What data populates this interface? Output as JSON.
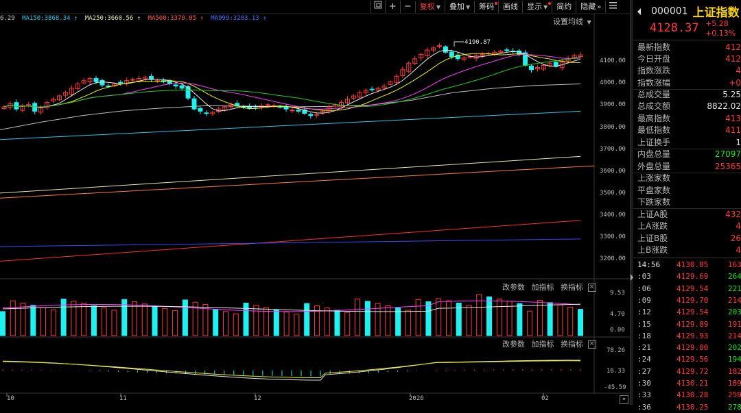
{
  "toolbar": {
    "icons": [
      "window-icon",
      "plus-icon",
      "minus-icon"
    ],
    "items": [
      {
        "label": "复权",
        "caret": true,
        "active": true,
        "dot": false
      },
      {
        "label": "叠加",
        "caret": true,
        "active": false,
        "dot": false
      },
      {
        "label": "筹码",
        "caret": false,
        "active": false,
        "dot": true
      },
      {
        "label": "画线",
        "caret": false,
        "active": false,
        "dot": false
      },
      {
        "label": "显示",
        "caret": true,
        "active": false,
        "dot": true
      },
      {
        "label": "简约",
        "caret": false,
        "active": false,
        "dot": false
      },
      {
        "label": "隐藏",
        "caret": false,
        "active": false,
        "dot": false
      }
    ],
    "hide_arrow": "»",
    "menu_icon": "hamburger-menu-icon"
  },
  "ma_legend": [
    {
      "text": "6.29",
      "color": "#c8c8c8"
    },
    {
      "text": "MA150:3868.34",
      "color": "#30c8e8"
    },
    {
      "text": "MA250:3660.56",
      "color": "#e8e8b0"
    },
    {
      "text": "MA500:3370.05",
      "color": "#ff5a4a"
    },
    {
      "text": "MA999:3283.13",
      "color": "#4a70ff"
    }
  ],
  "settings_ma": "设置均线",
  "price_axis": [
    "4100.00",
    "4000.00",
    "3900.00",
    "3800.00",
    "3700.00",
    "3600.00",
    "3500.00",
    "3400.00",
    "3300.00",
    "3200.00"
  ],
  "high_annotation": "4190.87",
  "volume_axis": [
    "9.53",
    "4.70",
    "0.00"
  ],
  "indicator_axis": [
    "78.26",
    "16.33",
    "-45.59"
  ],
  "panel_controls": {
    "change_params": "改参数",
    "add_indicator": "加指标",
    "switch_indicator": "换指标",
    "close": "×"
  },
  "time_axis": [
    {
      "label": "10"
    },
    {
      "label": "11"
    },
    {
      "label": "12"
    },
    {
      "label": "2026"
    },
    {
      "label": "02"
    }
  ],
  "scroll_arrow": "»",
  "colors": {
    "up": "#ff3b3b",
    "down": "#20f0f0",
    "ma5": "#e8e8e8",
    "ma10": "#f0f000",
    "ma20": "#ff40ff",
    "ma30": "#20d020",
    "ma60": "#c8c8c8"
  },
  "quote": {
    "code": "000001",
    "name": "上证指数",
    "price": "4128.37",
    "change": "+5.28",
    "change_pct": "+0.13%"
  },
  "stats": [
    {
      "label": "最新指数",
      "value": "412",
      "cls": "red"
    },
    {
      "label": "今日开盘",
      "value": "412",
      "cls": "red"
    },
    {
      "label": "指数涨跌",
      "value": "4",
      "cls": "red"
    },
    {
      "label": "指数涨幅",
      "value": "+0",
      "cls": "red"
    },
    {
      "label": "总成交量",
      "value": "5.25",
      "cls": "white"
    },
    {
      "label": "总成交额",
      "value": "8822.02",
      "cls": "white"
    },
    {
      "label": "最高指数",
      "value": "413",
      "cls": "red"
    },
    {
      "label": "最低指数",
      "value": "411",
      "cls": "red"
    },
    {
      "label": "上证换手",
      "value": "1",
      "cls": "white"
    },
    {
      "label": "内盘总量",
      "value": "27097",
      "cls": "green"
    },
    {
      "label": "外盘总量",
      "value": "25365",
      "cls": "red"
    },
    {
      "label": "上涨家数",
      "value": "",
      "cls": "red"
    },
    {
      "label": "平盘家数",
      "value": "",
      "cls": "white"
    },
    {
      "label": "下跌家数",
      "value": "",
      "cls": "green"
    },
    {
      "label": "上证A股",
      "value": "432",
      "cls": "red"
    },
    {
      "label": "上A涨跌",
      "value": "4",
      "cls": "red"
    },
    {
      "label": "上证B股",
      "value": "26",
      "cls": "red"
    },
    {
      "label": "上B涨跌",
      "value": "4",
      "cls": "red"
    }
  ],
  "ticks": [
    {
      "time": "14:56",
      "price": "4130.05",
      "vol": "163",
      "vcls": "red"
    },
    {
      "time": ":03",
      "price": "4129.69",
      "vol": "264",
      "vcls": "green"
    },
    {
      "time": ":06",
      "price": "4129.54",
      "vol": "221",
      "vcls": "green"
    },
    {
      "time": ":09",
      "price": "4129.70",
      "vol": "214",
      "vcls": "red"
    },
    {
      "time": ":12",
      "price": "4129.54",
      "vol": "203",
      "vcls": "green"
    },
    {
      "time": ":15",
      "price": "4129.89",
      "vol": "191",
      "vcls": "red"
    },
    {
      "time": ":18",
      "price": "4129.93",
      "vol": "214",
      "vcls": "red"
    },
    {
      "time": ":21",
      "price": "4129.80",
      "vol": "202",
      "vcls": "green"
    },
    {
      "time": ":24",
      "price": "4129.56",
      "vol": "194",
      "vcls": "green"
    },
    {
      "time": ":27",
      "price": "4129.72",
      "vol": "182",
      "vcls": "red"
    },
    {
      "time": ":30",
      "price": "4130.21",
      "vol": "189",
      "vcls": "red"
    },
    {
      "time": ":33",
      "price": "4130.28",
      "vol": "259",
      "vcls": "red"
    },
    {
      "time": ":36",
      "price": "4130.25",
      "vol": "278",
      "vcls": "green"
    }
  ]
}
